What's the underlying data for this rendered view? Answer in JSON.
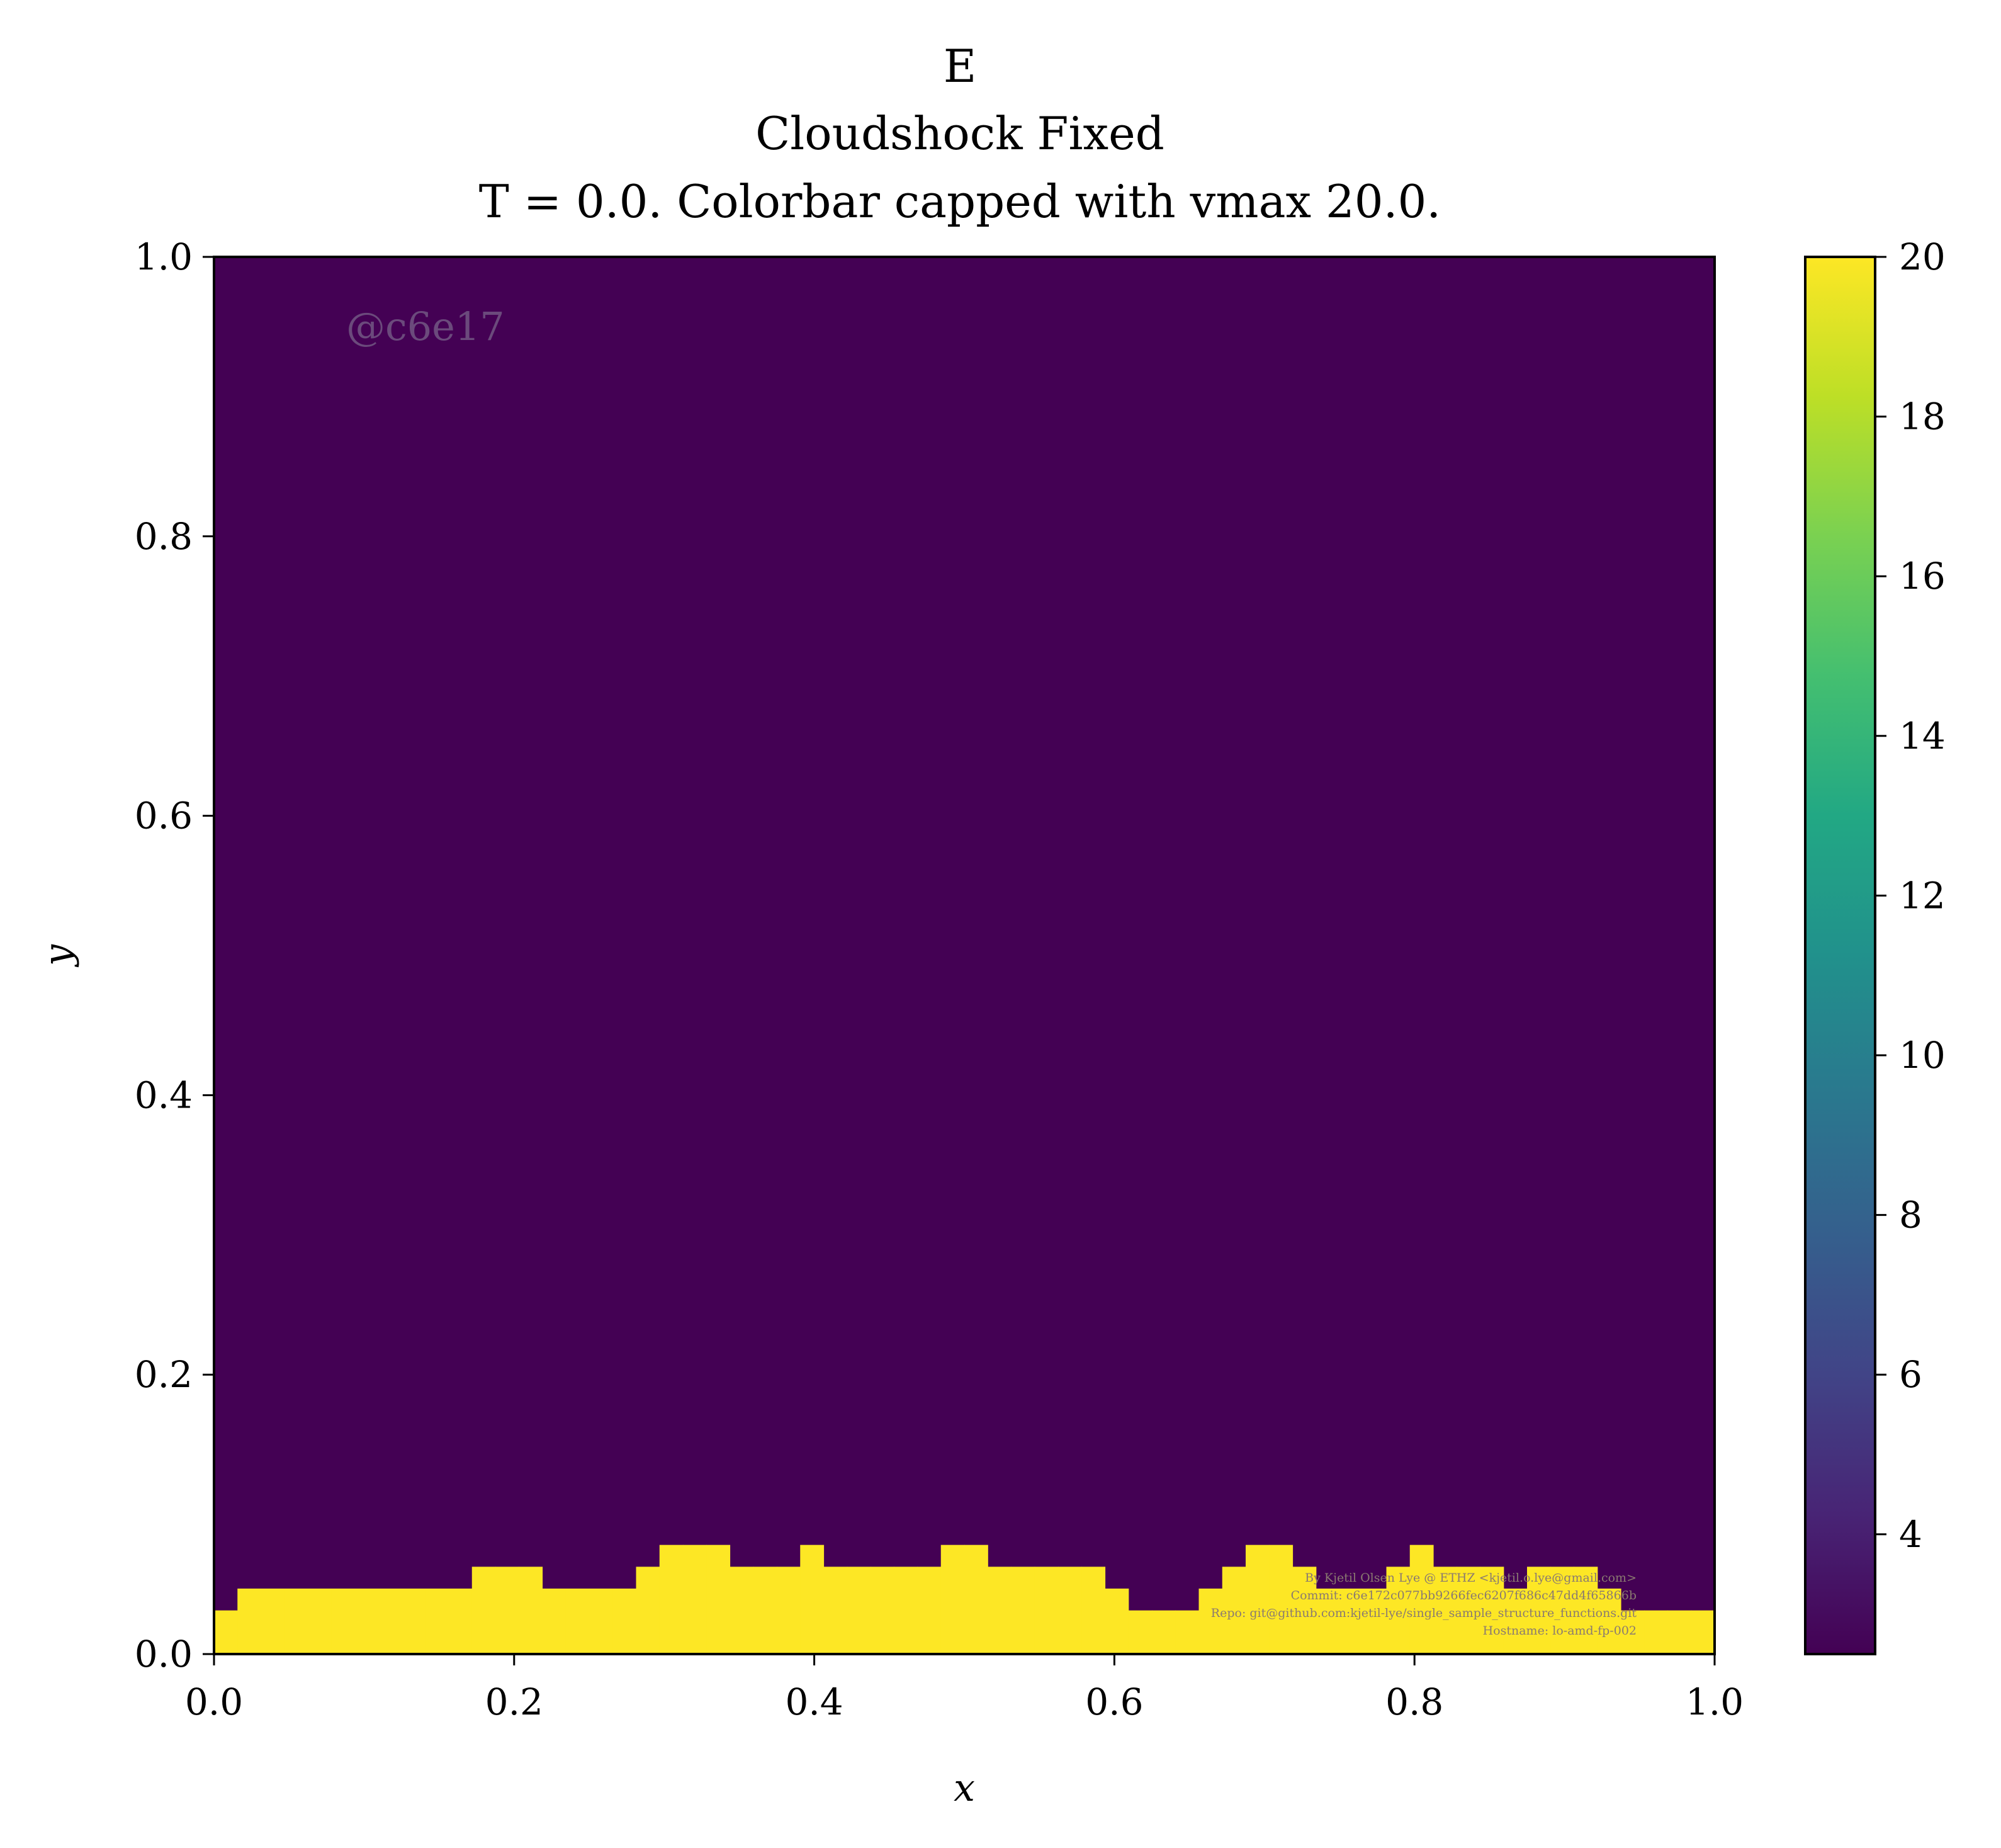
{
  "chart_data": {
    "type": "heatmap",
    "title_lines": [
      "E",
      "Cloudshock Fixed",
      "T = 0.0. Colorbar capped with vmax 20.0."
    ],
    "xlabel": "x",
    "ylabel": "y",
    "xlim": [
      0.0,
      1.0
    ],
    "ylim": [
      0.0,
      1.0
    ],
    "x_ticks": [
      "0.0",
      "0.2",
      "0.4",
      "0.6",
      "0.8",
      "1.0"
    ],
    "y_ticks": [
      "0.0",
      "0.2",
      "0.4",
      "0.6",
      "0.8",
      "1.0"
    ],
    "colormap": "viridis",
    "colorbar": {
      "vmin": 2.5,
      "vmax": 20.0,
      "ticks": [
        "4",
        "6",
        "8",
        "10",
        "12",
        "14",
        "16",
        "18",
        "20"
      ],
      "tick_values": [
        4,
        6,
        8,
        10,
        12,
        14,
        16,
        18,
        20
      ]
    },
    "background_value": 2.5,
    "high_value": 20.0,
    "grid_n": 64,
    "boundary_profile": [
      2,
      3,
      3,
      3,
      3,
      3,
      3,
      3,
      3,
      3,
      3,
      4,
      4,
      4,
      3,
      3,
      3,
      3,
      4,
      5,
      5,
      5,
      4,
      4,
      4,
      5,
      4,
      4,
      4,
      4,
      4,
      5,
      5,
      4,
      4,
      4,
      4,
      4,
      3,
      2,
      2,
      2,
      3,
      4,
      5,
      5,
      4,
      3,
      3,
      3,
      4,
      5,
      4,
      4,
      4,
      3,
      4,
      4,
      4,
      3,
      2,
      2,
      2,
      2
    ],
    "watermark_id": "@c6e17",
    "credits": [
      "By Kjetil Olsen Lye @ ETHZ <kjetil.o.lye@gmail.com>",
      "Commit: c6e172c077bb9266fec6207f686c47dd4f65866b",
      "Repo: git@github.com:kjetil-lye/single_sample_structure_functions.git",
      "Hostname: lo-amd-fp-002"
    ]
  }
}
